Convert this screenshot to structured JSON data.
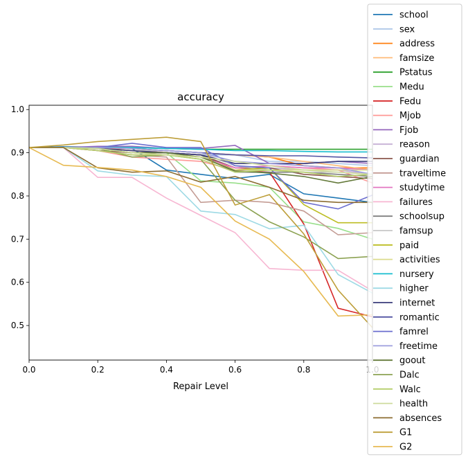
{
  "chart_data": {
    "type": "line",
    "title": "accuracy",
    "xlabel": "Repair Level",
    "ylabel": "",
    "xlim": [
      0,
      1.0
    ],
    "ylim": [
      0.42,
      1.01
    ],
    "xticks": [
      "0.0",
      "0.2",
      "0.4",
      "0.6",
      "0.8",
      "1.0"
    ],
    "yticks": [
      "0.5",
      "0.6",
      "0.7",
      "0.8",
      "0.9",
      "1.0"
    ],
    "grid": false,
    "legend_position": "right",
    "x": [
      0,
      0.1,
      0.2,
      0.3,
      0.4,
      0.5,
      0.6,
      0.7,
      0.8,
      0.9,
      1.0
    ],
    "series": [
      {
        "name": "school",
        "color": "#1f77b4",
        "values": [
          0.912,
          0.914,
          0.913,
          0.91,
          0.86,
          0.85,
          0.84,
          0.85,
          0.805,
          0.795,
          0.785
        ]
      },
      {
        "name": "sex",
        "color": "#aec7e8",
        "values": [
          0.912,
          0.912,
          0.912,
          0.905,
          0.9,
          0.895,
          0.895,
          0.88,
          0.88,
          0.875,
          0.87
        ]
      },
      {
        "name": "address",
        "color": "#ff7f0e",
        "values": [
          0.912,
          0.912,
          0.912,
          0.905,
          0.905,
          0.9,
          0.895,
          0.89,
          0.87,
          0.865,
          0.865
        ]
      },
      {
        "name": "famsize",
        "color": "#ffbb78",
        "values": [
          0.912,
          0.912,
          0.912,
          0.91,
          0.905,
          0.9,
          0.895,
          0.89,
          0.88,
          0.87,
          0.86
        ]
      },
      {
        "name": "Pstatus",
        "color": "#2ca02c",
        "values": [
          0.912,
          0.912,
          0.912,
          0.912,
          0.91,
          0.908,
          0.908,
          0.908,
          0.908,
          0.908,
          0.908
        ]
      },
      {
        "name": "Medu",
        "color": "#98df8a",
        "values": [
          0.912,
          0.912,
          0.91,
          0.9,
          0.9,
          0.835,
          0.83,
          0.82,
          0.74,
          0.725,
          0.7
        ]
      },
      {
        "name": "Fedu",
        "color": "#d62728",
        "values": [
          0.912,
          0.912,
          0.91,
          0.905,
          0.9,
          0.895,
          0.86,
          0.855,
          0.735,
          0.54,
          0.52
        ]
      },
      {
        "name": "Mjob",
        "color": "#ff9896",
        "values": [
          0.912,
          0.912,
          0.905,
          0.89,
          0.885,
          0.88,
          0.86,
          0.87,
          0.865,
          0.86,
          0.83
        ]
      },
      {
        "name": "Fjob",
        "color": "#9467bd",
        "values": [
          0.912,
          0.912,
          0.915,
          0.915,
          0.91,
          0.91,
          0.917,
          0.875,
          0.875,
          0.88,
          0.875
        ]
      },
      {
        "name": "reason",
        "color": "#c5b0d5",
        "values": [
          0.912,
          0.912,
          0.91,
          0.905,
          0.9,
          0.895,
          0.855,
          0.865,
          0.86,
          0.86,
          0.85
        ]
      },
      {
        "name": "guardian",
        "color": "#8c564b",
        "values": [
          0.912,
          0.912,
          0.905,
          0.9,
          0.9,
          0.895,
          0.865,
          0.865,
          0.85,
          0.845,
          0.84
        ]
      },
      {
        "name": "traveltime",
        "color": "#c49c94",
        "values": [
          0.912,
          0.912,
          0.905,
          0.895,
          0.89,
          0.785,
          0.79,
          0.785,
          0.765,
          0.71,
          0.715
        ]
      },
      {
        "name": "studytime",
        "color": "#e377c2",
        "values": [
          0.912,
          0.912,
          0.91,
          0.9,
          0.895,
          0.89,
          0.865,
          0.87,
          0.865,
          0.865,
          0.86
        ]
      },
      {
        "name": "failures",
        "color": "#f7b6d2",
        "values": [
          0.912,
          0.912,
          0.843,
          0.843,
          0.795,
          0.755,
          0.715,
          0.632,
          0.628,
          0.628,
          0.58
        ]
      },
      {
        "name": "schoolsup",
        "color": "#7f7f7f",
        "values": [
          0.912,
          0.912,
          0.91,
          0.9,
          0.9,
          0.895,
          0.855,
          0.855,
          0.855,
          0.85,
          0.845
        ]
      },
      {
        "name": "famsup",
        "color": "#c7c7c7",
        "values": [
          0.912,
          0.912,
          0.91,
          0.905,
          0.905,
          0.9,
          0.87,
          0.86,
          0.855,
          0.855,
          0.85
        ]
      },
      {
        "name": "paid",
        "color": "#bcbd22",
        "values": [
          0.912,
          0.912,
          0.91,
          0.9,
          0.895,
          0.89,
          0.86,
          0.865,
          0.78,
          0.738,
          0.738
        ]
      },
      {
        "name": "activities",
        "color": "#dbdb8d",
        "values": [
          0.912,
          0.912,
          0.91,
          0.9,
          0.895,
          0.89,
          0.86,
          0.86,
          0.86,
          0.86,
          0.86
        ]
      },
      {
        "name": "nursery",
        "color": "#17becf",
        "values": [
          0.912,
          0.912,
          0.912,
          0.912,
          0.91,
          0.908,
          0.905,
          0.905,
          0.903,
          0.902,
          0.902
        ]
      },
      {
        "name": "higher",
        "color": "#9edae5",
        "values": [
          0.912,
          0.912,
          0.858,
          0.848,
          0.845,
          0.765,
          0.757,
          0.724,
          0.732,
          0.618,
          0.575
        ]
      },
      {
        "name": "internet",
        "color": "#393b79",
        "values": [
          0.912,
          0.912,
          0.91,
          0.905,
          0.9,
          0.895,
          0.875,
          0.875,
          0.875,
          0.88,
          0.88
        ]
      },
      {
        "name": "romantic",
        "color": "#5254a3",
        "values": [
          0.912,
          0.912,
          0.912,
          0.91,
          0.905,
          0.9,
          0.895,
          0.893,
          0.893,
          0.89,
          0.888
        ]
      },
      {
        "name": "famrel",
        "color": "#6b6ecf",
        "values": [
          0.912,
          0.912,
          0.912,
          0.922,
          0.912,
          0.912,
          0.87,
          0.865,
          0.785,
          0.77,
          0.802
        ]
      },
      {
        "name": "freetime",
        "color": "#9c9ede",
        "values": [
          0.912,
          0.912,
          0.912,
          0.91,
          0.905,
          0.9,
          0.88,
          0.875,
          0.87,
          0.865,
          0.85
        ]
      },
      {
        "name": "goout",
        "color": "#637939",
        "values": [
          0.912,
          0.912,
          0.91,
          0.9,
          0.9,
          0.89,
          0.858,
          0.853,
          0.845,
          0.83,
          0.845
        ]
      },
      {
        "name": "Dalc",
        "color": "#8ca252",
        "values": [
          0.912,
          0.912,
          0.91,
          0.89,
          0.895,
          0.885,
          0.79,
          0.74,
          0.705,
          0.655,
          0.66
        ]
      },
      {
        "name": "Walc",
        "color": "#b5cf6b",
        "values": [
          0.912,
          0.912,
          0.905,
          0.895,
          0.895,
          0.885,
          0.855,
          0.86,
          0.855,
          0.845,
          0.85
        ]
      },
      {
        "name": "health",
        "color": "#cedb9c",
        "values": [
          0.912,
          0.912,
          0.91,
          0.9,
          0.895,
          0.89,
          0.88,
          0.87,
          0.86,
          0.855,
          0.85
        ]
      },
      {
        "name": "absences",
        "color": "#8c6d31",
        "values": [
          0.912,
          0.912,
          0.865,
          0.855,
          0.858,
          0.832,
          0.845,
          0.82,
          0.79,
          0.785,
          0.785
        ]
      },
      {
        "name": "G1",
        "color": "#bd9e39",
        "values": [
          0.912,
          0.918,
          0.926,
          0.931,
          0.936,
          0.926,
          0.779,
          0.803,
          0.712,
          0.582,
          0.495
        ]
      },
      {
        "name": "G2",
        "color": "#e7ba52",
        "values": [
          0.912,
          0.871,
          0.866,
          0.86,
          0.845,
          0.82,
          0.742,
          0.7,
          0.625,
          0.522,
          0.525
        ]
      }
    ]
  }
}
